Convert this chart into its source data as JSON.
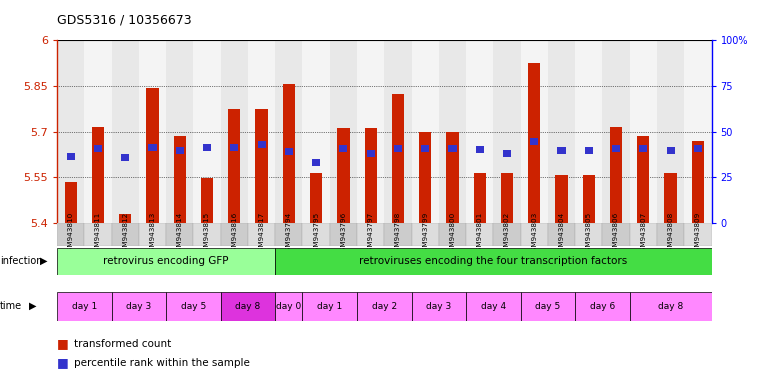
{
  "title": "GDS5316 / 10356673",
  "samples": [
    "GSM943810",
    "GSM943811",
    "GSM943812",
    "GSM943813",
    "GSM943814",
    "GSM943815",
    "GSM943816",
    "GSM943817",
    "GSM943794",
    "GSM943795",
    "GSM943796",
    "GSM943797",
    "GSM943798",
    "GSM943799",
    "GSM943800",
    "GSM943801",
    "GSM943802",
    "GSM943803",
    "GSM943804",
    "GSM943805",
    "GSM943806",
    "GSM943807",
    "GSM943808",
    "GSM943809"
  ],
  "bar_values": [
    5.535,
    5.715,
    5.43,
    5.843,
    5.685,
    5.548,
    5.775,
    5.775,
    5.855,
    5.565,
    5.71,
    5.71,
    5.825,
    5.7,
    5.7,
    5.565,
    5.565,
    5.925,
    5.558,
    5.558,
    5.715,
    5.685,
    5.565,
    5.67
  ],
  "blue_values": [
    5.618,
    5.645,
    5.615,
    5.648,
    5.638,
    5.648,
    5.648,
    5.658,
    5.635,
    5.598,
    5.645,
    5.628,
    5.645,
    5.645,
    5.645,
    5.64,
    5.628,
    5.668,
    5.638,
    5.638,
    5.645,
    5.645,
    5.638,
    5.645
  ],
  "y_min": 5.4,
  "y_max": 6.0,
  "y_ticks": [
    5.4,
    5.55,
    5.7,
    5.85,
    6.0
  ],
  "y_tick_labels": [
    "5.4",
    "5.55",
    "5.7",
    "5.85",
    "6"
  ],
  "right_y_ticks": [
    0,
    25,
    50,
    75,
    100
  ],
  "right_y_labels": [
    "0",
    "25",
    "50",
    "75",
    "100%"
  ],
  "bar_color": "#cc2200",
  "blue_color": "#3333cc",
  "infection_groups": [
    {
      "label": "retrovirus encoding GFP",
      "start": 0,
      "end": 7,
      "color": "#99ff99"
    },
    {
      "label": "retroviruses encoding the four transcription factors",
      "start": 8,
      "end": 23,
      "color": "#44dd44"
    }
  ],
  "time_groups": [
    {
      "label": "day 1",
      "start": 0,
      "end": 1,
      "color": "#ff88ff"
    },
    {
      "label": "day 3",
      "start": 2,
      "end": 3,
      "color": "#ff88ff"
    },
    {
      "label": "day 5",
      "start": 4,
      "end": 5,
      "color": "#ff88ff"
    },
    {
      "label": "day 8",
      "start": 6,
      "end": 7,
      "color": "#dd33dd"
    },
    {
      "label": "day 0",
      "start": 8,
      "end": 8,
      "color": "#ff88ff"
    },
    {
      "label": "day 1",
      "start": 9,
      "end": 10,
      "color": "#ff88ff"
    },
    {
      "label": "day 2",
      "start": 11,
      "end": 12,
      "color": "#ff88ff"
    },
    {
      "label": "day 3",
      "start": 13,
      "end": 14,
      "color": "#ff88ff"
    },
    {
      "label": "day 4",
      "start": 15,
      "end": 16,
      "color": "#ff88ff"
    },
    {
      "label": "day 5",
      "start": 17,
      "end": 18,
      "color": "#ff88ff"
    },
    {
      "label": "day 6",
      "start": 19,
      "end": 20,
      "color": "#ff88ff"
    },
    {
      "label": "day 8",
      "start": 21,
      "end": 23,
      "color": "#ff88ff"
    }
  ],
  "legend_items": [
    {
      "label": "transformed count",
      "color": "#cc2200"
    },
    {
      "label": "percentile rank within the sample",
      "color": "#3333cc"
    }
  ]
}
